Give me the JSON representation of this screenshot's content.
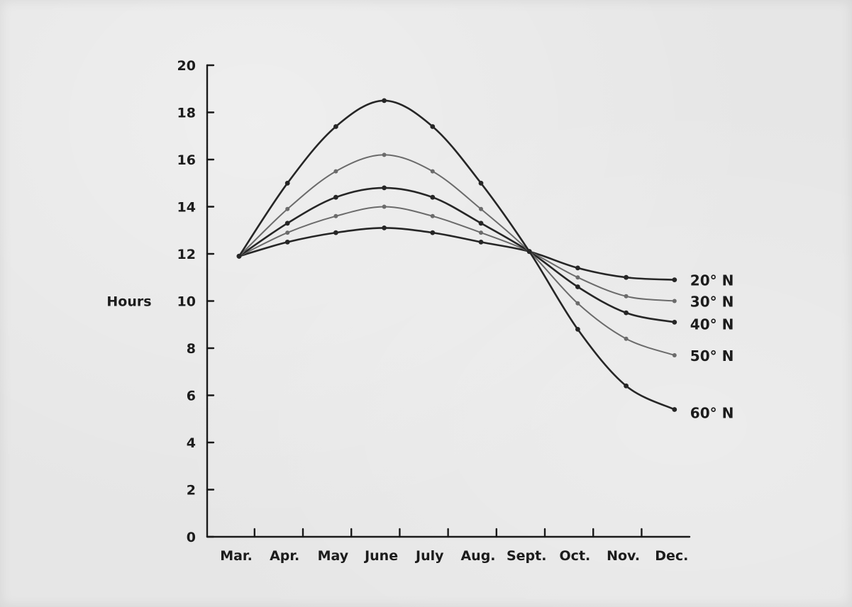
{
  "chart_data": {
    "type": "line",
    "title": "",
    "xlabel": "",
    "ylabel": "Hours",
    "ylim": [
      0,
      20
    ],
    "yticks": [
      "0",
      "2",
      "4",
      "6",
      "8",
      "10",
      "12",
      "14",
      "16",
      "18",
      "20"
    ],
    "categories": [
      "Mar.",
      "Apr.",
      "May",
      "June",
      "July",
      "Aug.",
      "Sept.",
      "Oct.",
      "Nov.",
      "Dec."
    ],
    "grid": false,
    "legend": "inline labels at right end of each line",
    "series": [
      {
        "name": "20° N",
        "color": "#262626",
        "x": [
          0,
          1,
          2,
          3,
          4,
          5,
          6,
          7,
          8,
          9
        ],
        "values": [
          11.9,
          12.5,
          12.9,
          13.1,
          12.9,
          12.5,
          12.1,
          11.4,
          11.0,
          10.9
        ]
      },
      {
        "name": "30° N",
        "color": "#6b6b6b",
        "x": [
          0,
          1,
          2,
          3,
          4,
          5,
          6,
          7,
          8,
          9
        ],
        "values": [
          11.9,
          12.9,
          13.6,
          14.0,
          13.6,
          12.9,
          12.1,
          11.0,
          10.2,
          10.0
        ]
      },
      {
        "name": "40° N",
        "color": "#262626",
        "x": [
          0,
          1,
          2,
          3,
          4,
          5,
          6,
          7,
          8,
          9
        ],
        "values": [
          11.9,
          13.3,
          14.4,
          14.8,
          14.4,
          13.3,
          12.1,
          10.6,
          9.5,
          9.1
        ]
      },
      {
        "name": "50° N",
        "color": "#6b6b6b",
        "x": [
          0,
          1,
          2,
          3,
          4,
          5,
          6,
          7,
          8,
          9
        ],
        "values": [
          11.9,
          13.9,
          15.5,
          16.2,
          15.5,
          13.9,
          12.1,
          9.9,
          8.4,
          7.7
        ]
      },
      {
        "name": "60° N",
        "color": "#262626",
        "x": [
          0,
          1,
          2,
          3,
          4,
          5,
          6,
          7,
          8,
          9
        ],
        "values": [
          11.9,
          15.0,
          17.4,
          18.5,
          17.4,
          15.0,
          12.1,
          8.8,
          6.4,
          5.4
        ]
      }
    ]
  }
}
